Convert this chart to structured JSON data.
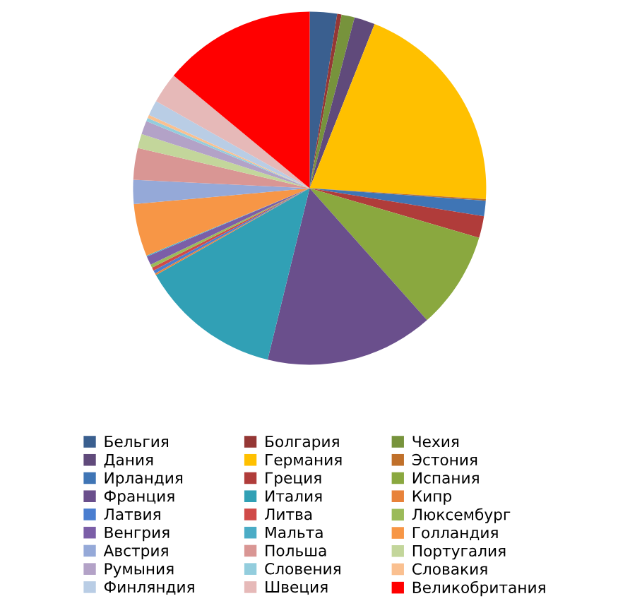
{
  "chart_data": {
    "type": "pie",
    "categories": [
      "Бельгия",
      "Болгария",
      "Чехия",
      "Дания",
      "Германия",
      "Эстония",
      "Ирландия",
      "Греция",
      "Испания",
      "Франция",
      "Италия",
      "Кипр",
      "Латвия",
      "Литва",
      "Люксембург",
      "Венгрия",
      "Мальта",
      "Голландия",
      "Австрия",
      "Польша",
      "Португалия",
      "Румыния",
      "Словения",
      "Словакия",
      "Финляндия",
      "Швеция",
      "Великобритания"
    ],
    "values": [
      2.5,
      0.4,
      1.2,
      1.9,
      20,
      0.15,
      1.4,
      2,
      8.9,
      15.4,
      13,
      0.15,
      0.3,
      0.3,
      0.3,
      0.8,
      0.1,
      4.8,
      2.2,
      2.9,
      1.3,
      1.25,
      0.3,
      0.3,
      1.4,
      2.8,
      14
    ],
    "colors": [
      "#3a5f8f",
      "#953735",
      "#77933c",
      "#604a7b",
      "#ffc000",
      "#c0702a",
      "#3f75b5",
      "#b03c3a",
      "#8aa83f",
      "#6a4f8c",
      "#31a0b5",
      "#e8823a",
      "#4a7ed0",
      "#d04a48",
      "#9bbb59",
      "#7b5ea7",
      "#4bacc6",
      "#f79646",
      "#95a9d8",
      "#d99694",
      "#c3d69b",
      "#b3a2c7",
      "#93cddd",
      "#fac090",
      "#b9cde5",
      "#e6b9b8",
      "#ff0000"
    ],
    "legend": "bottom"
  }
}
